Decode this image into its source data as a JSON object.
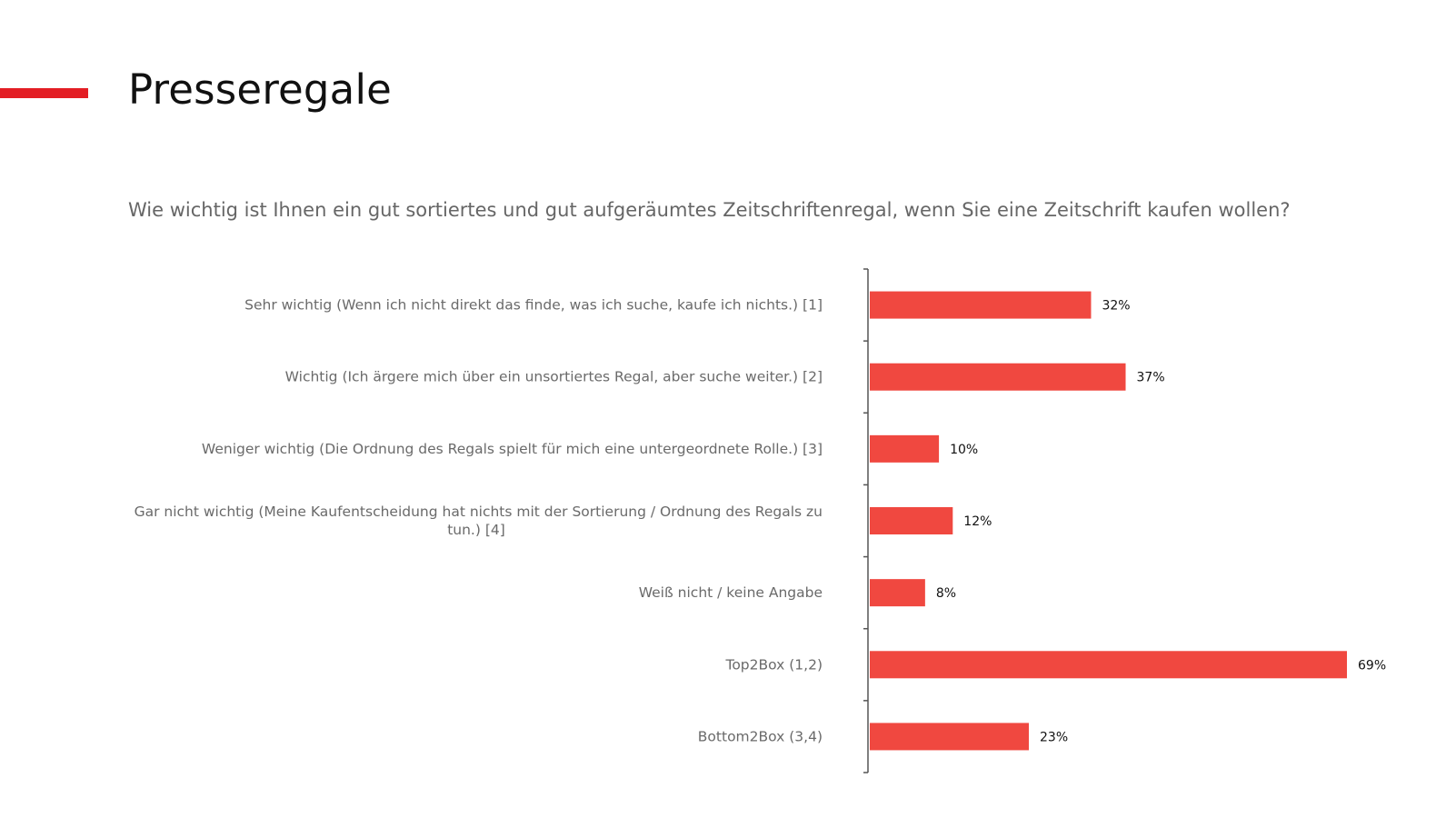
{
  "title": "Presseregale",
  "question": "Wie wichtig ist Ihnen ein gut sortiertes und gut aufgeräumtes Zeitschriftenregal, wenn Sie eine Zeitschrift kaufen wollen?",
  "colors": {
    "accent": "#e31e24",
    "bar": "#f04840",
    "axis": "#555555"
  },
  "chart_data": {
    "type": "bar",
    "orientation": "horizontal",
    "title": "",
    "xlabel": "",
    "ylabel": "",
    "xlim": [
      0,
      69
    ],
    "grid": false,
    "legend": "none",
    "categories": [
      [
        "Sehr wichtig (Wenn ich nicht direkt das finde, was ich suche, kaufe ich nichts.) [1]"
      ],
      [
        "Wichtig (Ich ärgere mich über ein unsortiertes Regal, aber suche weiter.) [2]"
      ],
      [
        "Weniger wichtig (Die Ordnung des Regals spielt für mich eine untergeordnete Rolle.) [3]"
      ],
      [
        "Gar nicht wichtig (Meine Kaufentscheidung hat nichts mit der Sortierung / Ordnung des Regals zu",
        "tun.) [4]"
      ],
      [
        "Weiß nicht / keine Angabe"
      ],
      [
        "Top2Box (1,2)"
      ],
      [
        "Bottom2Box (3,4)"
      ]
    ],
    "values": [
      32,
      37,
      10,
      12,
      8,
      69,
      23
    ],
    "value_labels": [
      "32%",
      "37%",
      "10%",
      "12%",
      "8%",
      "69%",
      "23%"
    ]
  }
}
